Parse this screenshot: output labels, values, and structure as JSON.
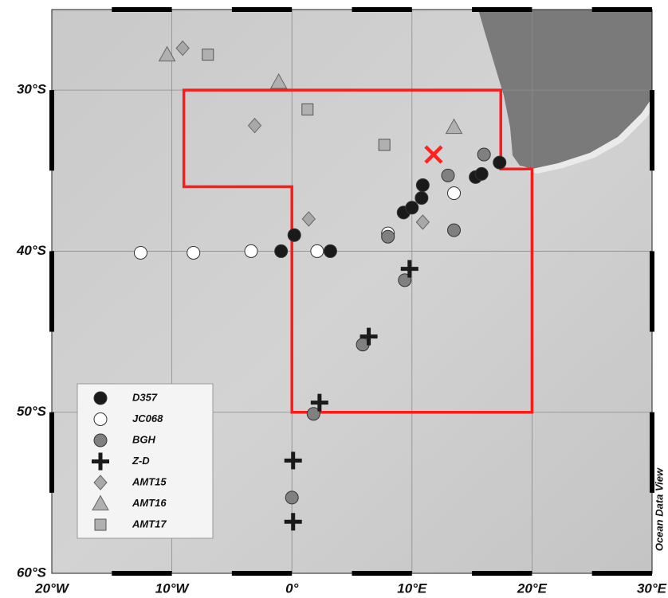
{
  "chart_data": {
    "type": "map",
    "xlim": [
      -20,
      30
    ],
    "ylim": [
      -60,
      -25
    ],
    "xticks": [
      {
        "value": -20,
        "label": "20°W"
      },
      {
        "value": -10,
        "label": "10°W"
      },
      {
        "value": 0,
        "label": "0°"
      },
      {
        "value": 10,
        "label": "10°E"
      },
      {
        "value": 20,
        "label": "20°E"
      },
      {
        "value": 30,
        "label": "30°E"
      }
    ],
    "yticks": [
      {
        "value": -30,
        "label": "30°S"
      },
      {
        "value": -40,
        "label": "40°S"
      },
      {
        "value": -50,
        "label": "50°S"
      },
      {
        "value": -60,
        "label": "60°S"
      }
    ],
    "grid": true,
    "credit": "Ocean Data View",
    "region": {
      "color": "#ff1a1a",
      "x": [
        -9,
        17.4,
        17.4,
        20,
        20,
        0,
        0,
        -9
      ],
      "y": [
        -30,
        -30,
        -34.9,
        -34.9,
        -50,
        -50,
        -36,
        -36
      ]
    },
    "site": {
      "color": "#ff2020",
      "x": 11.8,
      "y": -34
    },
    "series": [
      {
        "name": "D357",
        "marker": "circle",
        "color": "#1a1a1a",
        "x": [
          -0.9,
          0.2,
          3.2,
          10.9,
          9.3,
          10.0,
          10.8,
          15.3,
          15.8,
          17.3
        ],
        "y": [
          -40.0,
          -39.0,
          -40.0,
          -35.9,
          -37.6,
          -37.3,
          -36.7,
          -35.4,
          -35.2,
          -34.5
        ]
      },
      {
        "name": "JC068",
        "marker": "circle",
        "color": "#ffffff",
        "x": [
          -12.6,
          -8.2,
          -3.4,
          2.1,
          8.0,
          13.5
        ],
        "y": [
          -40.1,
          -40.1,
          -40.0,
          -40.0,
          -38.9,
          -36.4
        ]
      },
      {
        "name": "BGH",
        "marker": "circle",
        "color": "#808080",
        "x": [
          8.0,
          13.0,
          13.5,
          16.0,
          9.4,
          5.9,
          1.8,
          0
        ],
        "y": [
          -39.1,
          -35.3,
          -38.7,
          -34.0,
          -41.8,
          -45.8,
          -50.1,
          -55.3
        ]
      },
      {
        "name": "Z-D",
        "marker": "plus",
        "color": "#1a1a1a",
        "x": [
          9.8,
          6.4,
          2.3,
          0.1,
          0.1
        ],
        "y": [
          -41.1,
          -45.3,
          -49.4,
          -53.0,
          -56.8
        ]
      },
      {
        "name": "AMT15",
        "marker": "diamond",
        "color": "#a8a8a8",
        "x": [
          -9.1,
          -3.1,
          1.4,
          10.9
        ],
        "y": [
          -27.4,
          -32.2,
          -38.0,
          -38.2
        ]
      },
      {
        "name": "AMT16",
        "marker": "triangle",
        "color": "#b0b0b0",
        "x": [
          -10.4,
          -1.1,
          13.5
        ],
        "y": [
          -27.8,
          -29.5,
          -32.3
        ]
      },
      {
        "name": "AMT17",
        "marker": "square",
        "color": "#b0b0b0",
        "x": [
          -7.0,
          1.3,
          7.7
        ],
        "y": [
          -27.8,
          -31.2,
          -33.4
        ]
      }
    ]
  }
}
